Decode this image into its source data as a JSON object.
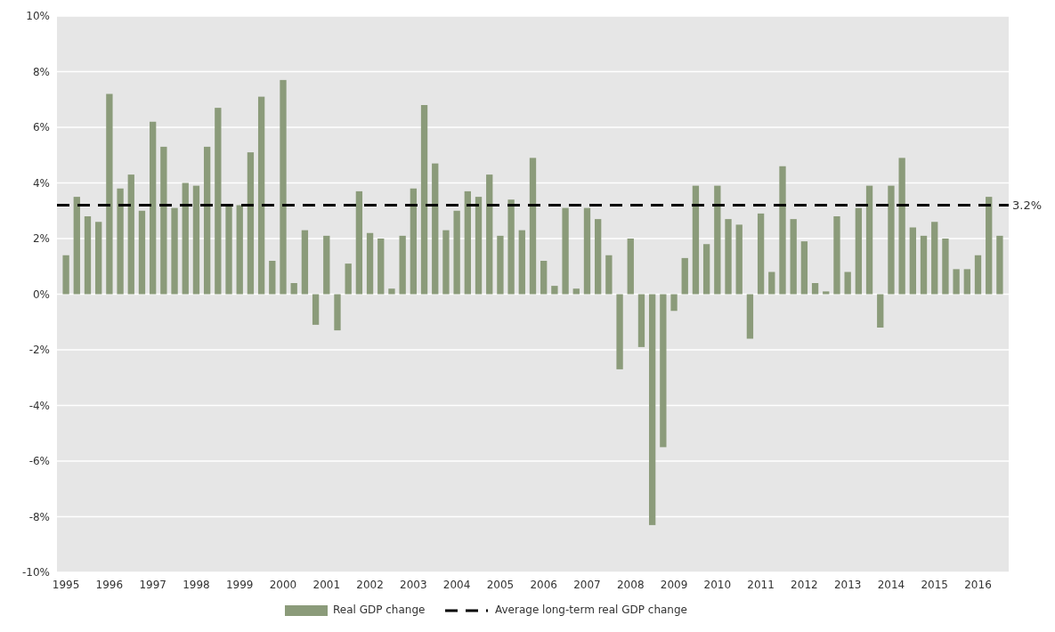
{
  "chart_data": {
    "type": "bar",
    "categories": [
      "1995",
      null,
      null,
      null,
      "1996",
      null,
      null,
      null,
      "1997",
      null,
      null,
      null,
      "1998",
      null,
      null,
      null,
      "1999",
      null,
      null,
      null,
      "2000",
      null,
      null,
      null,
      "2001",
      null,
      null,
      null,
      "2002",
      null,
      null,
      null,
      "2003",
      null,
      null,
      null,
      "2004",
      null,
      null,
      null,
      "2005",
      null,
      null,
      null,
      "2006",
      null,
      null,
      null,
      "2007",
      null,
      null,
      null,
      "2008",
      null,
      null,
      null,
      "2009",
      null,
      null,
      null,
      "2010",
      null,
      null,
      null,
      "2011",
      null,
      null,
      null,
      "2012",
      null,
      null,
      null,
      "2013",
      null,
      null,
      null,
      "2014",
      null,
      null,
      null,
      "2015",
      null,
      null,
      null,
      "2016",
      null,
      null
    ],
    "series": [
      {
        "name": "Real GDP change",
        "color": "#8b9b7a",
        "values": [
          1.4,
          3.5,
          2.8,
          2.6,
          7.2,
          3.8,
          4.3,
          3.0,
          6.2,
          5.3,
          3.1,
          4.0,
          3.9,
          5.3,
          6.7,
          3.2,
          3.2,
          5.1,
          7.1,
          1.2,
          7.7,
          0.4,
          2.3,
          -1.1,
          2.1,
          -1.3,
          1.1,
          3.7,
          2.2,
          2.0,
          0.2,
          2.1,
          3.8,
          6.8,
          4.7,
          2.3,
          3.0,
          3.7,
          3.5,
          4.3,
          2.1,
          3.4,
          2.3,
          4.9,
          1.2,
          0.3,
          3.1,
          0.2,
          3.1,
          2.7,
          1.4,
          -2.7,
          2.0,
          -1.9,
          -8.3,
          -5.5,
          -0.6,
          1.3,
          3.9,
          1.8,
          3.9,
          2.7,
          2.5,
          -1.6,
          2.9,
          0.8,
          4.6,
          2.7,
          1.9,
          0.4,
          0.1,
          2.8,
          0.8,
          3.1,
          3.9,
          -1.2,
          3.9,
          4.9,
          2.4,
          2.1,
          2.6,
          2.0,
          0.9,
          0.9,
          1.4,
          3.5,
          2.1
        ]
      }
    ],
    "ylim": [
      -10,
      10
    ],
    "yticks": [
      {
        "value": -10,
        "label": "-10%"
      },
      {
        "value": -8,
        "label": "-8%"
      },
      {
        "value": -6,
        "label": "-6%"
      },
      {
        "value": -4,
        "label": "-4%"
      },
      {
        "value": -2,
        "label": "-2%"
      },
      {
        "value": 0,
        "label": "0%"
      },
      {
        "value": 2,
        "label": "2%"
      },
      {
        "value": 4,
        "label": "4%"
      },
      {
        "value": 6,
        "label": "6%"
      },
      {
        "value": 8,
        "label": "8%"
      },
      {
        "value": 10,
        "label": "10%"
      }
    ],
    "grid": "y",
    "legend": "bottom",
    "ref_lines": [
      {
        "axis": "y",
        "value": 3.2,
        "label": "3.2%",
        "color": "#000000",
        "line_style": "dashed"
      }
    ],
    "annotations": [
      "Average long-term real GDP change"
    ]
  }
}
